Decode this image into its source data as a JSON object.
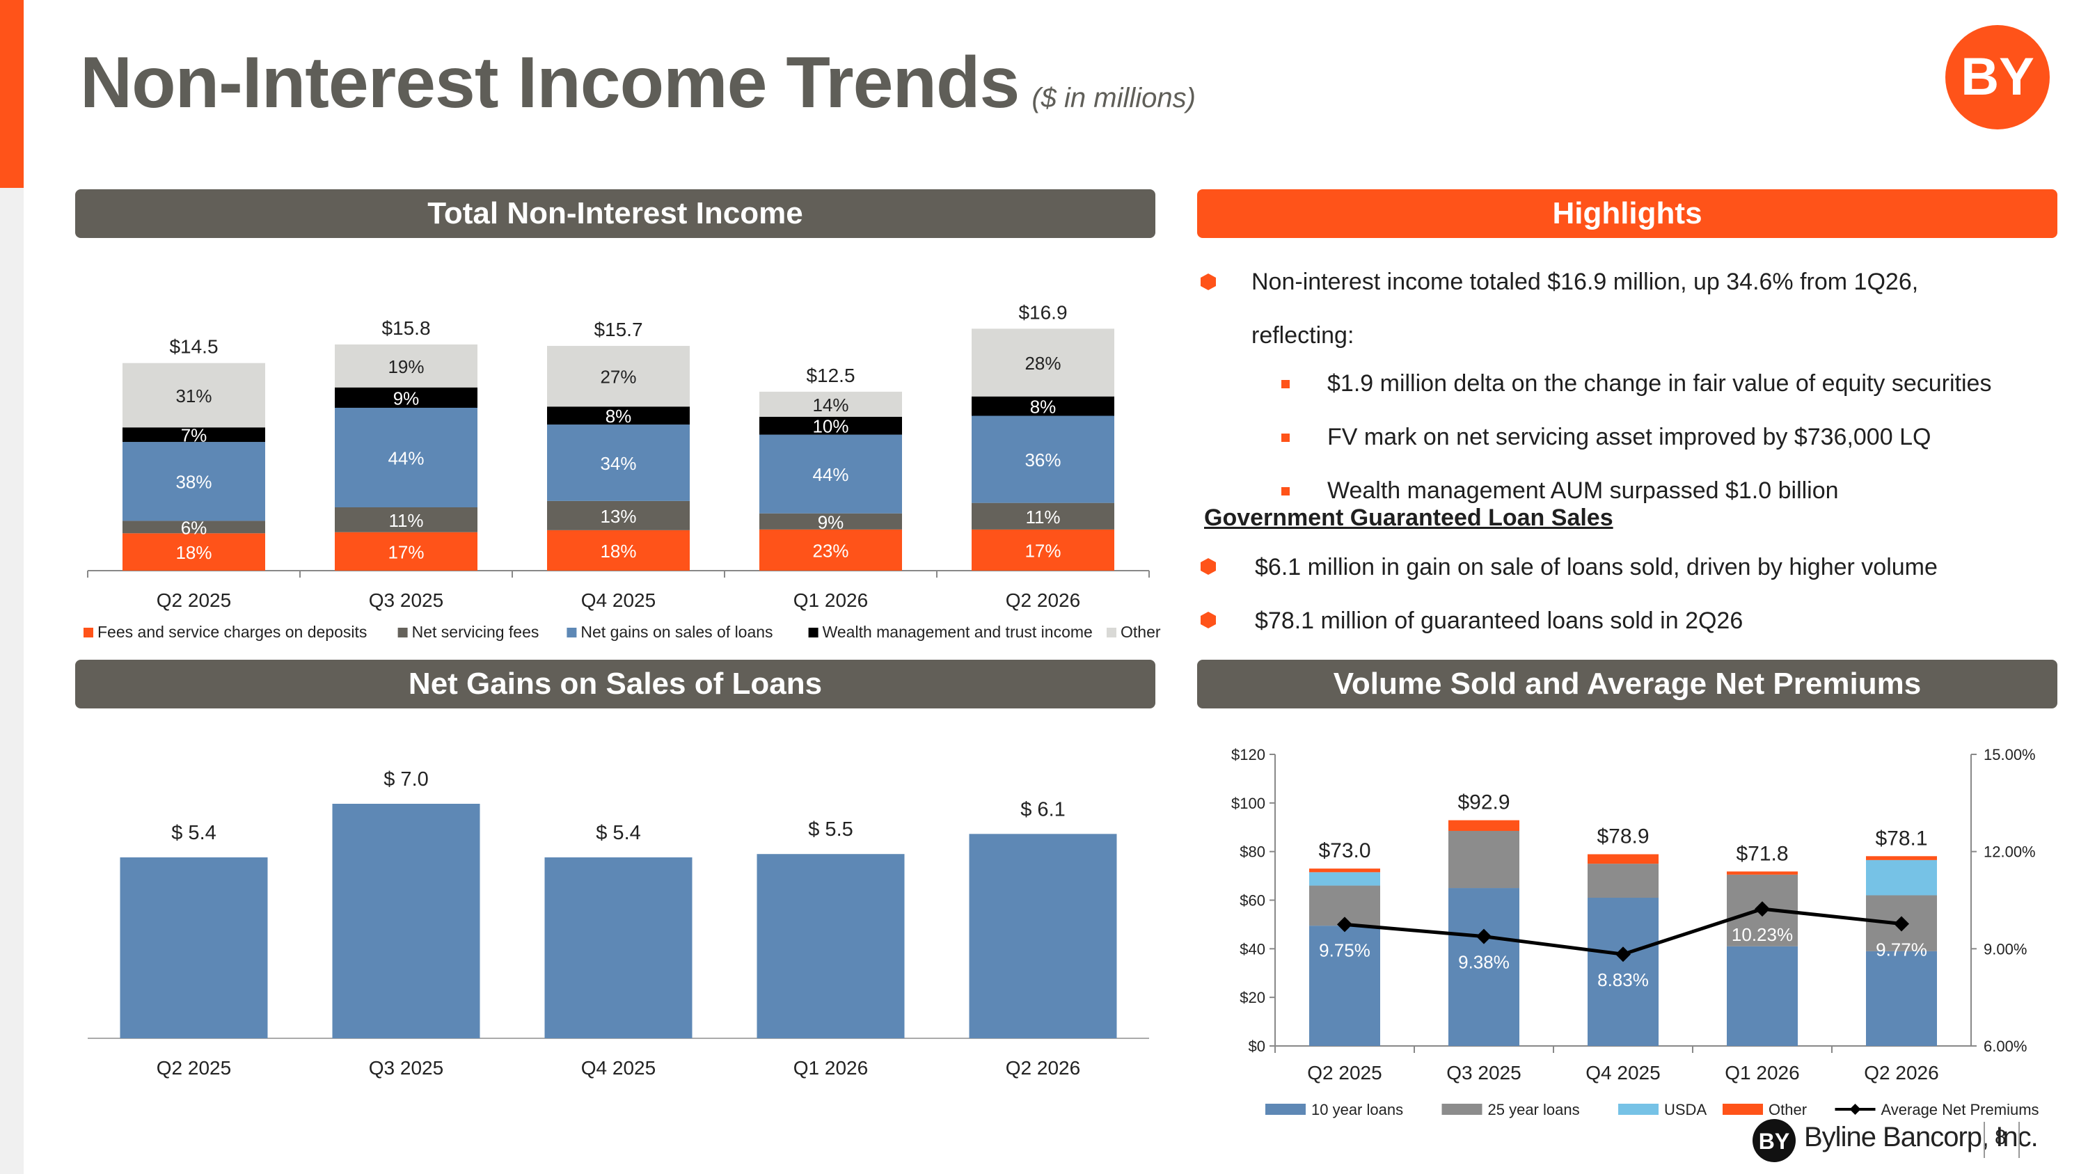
{
  "title": "Non-Interest Income Trends",
  "subtitle": "($ in millions)",
  "logo_text": "BY",
  "page_number": "8",
  "footer_company": "Byline Bancorp, Inc.",
  "colors": {
    "accent": "#FF5319",
    "header_grey": "#625F58",
    "blue": "#5E88B5",
    "grey": "#8C8C8C",
    "dark_grey": "#65625B",
    "light_grey": "#D9D9D6",
    "black": "#000000",
    "light_blue": "#76C2E6"
  },
  "panels": {
    "total": "Total Non-Interest Income",
    "highlights": "Highlights",
    "net_gains": "Net Gains on Sales of Loans",
    "volume": "Volume Sold and Average Net Premiums"
  },
  "highlights": {
    "line1": "Non-interest income totaled $16.9 million, up 34.6% from 1Q26,",
    "line1b": "reflecting:",
    "sub1": "$1.9 million delta on the change in fair value of equity securities",
    "sub2": "FV mark on net servicing asset improved by $736,000 LQ",
    "sub3": "Wealth management AUM surpassed $1.0 billion",
    "gov_heading": "Government Guaranteed Loan Sales",
    "gov1": "$6.1 million in gain on sale of loans sold, driven by higher volume",
    "gov2": "$78.1 million of guaranteed loans sold in 2Q26"
  },
  "chart_data": [
    {
      "type": "bar",
      "stacked": true,
      "title": "Total Non-Interest Income",
      "categories": [
        "Q2 2025",
        "Q3 2025",
        "Q4 2025",
        "Q1 2026",
        "Q2 2026"
      ],
      "totals": [
        14.5,
        15.8,
        15.7,
        12.5,
        16.9
      ],
      "total_labels": [
        "$14.5",
        "$15.8",
        "$15.7",
        "$12.5",
        "$16.9"
      ],
      "series": [
        {
          "name": "Fees and service charges on deposits",
          "percent": [
            18,
            17,
            18,
            23,
            17
          ],
          "labels": [
            "18%",
            "17%",
            "18%",
            "23%",
            "17%"
          ],
          "color": "#FF5319",
          "label_color": "#ffffff"
        },
        {
          "name": "Net servicing fees",
          "percent": [
            6,
            11,
            13,
            9,
            11
          ],
          "labels": [
            "6%",
            "11%",
            "13%",
            "9%",
            "11%"
          ],
          "color": "#65625B",
          "label_color": "#ffffff"
        },
        {
          "name": "Net gains on sales of loans",
          "percent": [
            38,
            44,
            34,
            44,
            36
          ],
          "labels": [
            "38%",
            "44%",
            "34%",
            "44%",
            "36%"
          ],
          "color": "#5E88B5",
          "label_color": "#ffffff"
        },
        {
          "name": "Wealth management and trust income",
          "percent": [
            7,
            9,
            8,
            10,
            8
          ],
          "labels": [
            "7%",
            "9%",
            "8%",
            "10%",
            "8%"
          ],
          "color": "#000000",
          "label_color": "#ffffff"
        },
        {
          "name": "Other",
          "percent": [
            31,
            19,
            27,
            14,
            28
          ],
          "labels": [
            "31%",
            "19%",
            "27%",
            "14%",
            "28%"
          ],
          "color": "#D9D9D6",
          "label_color": "#222222"
        }
      ],
      "legend": "bottom",
      "grid": false
    },
    {
      "type": "bar",
      "title": "Net Gains on Sales of Loans",
      "categories": [
        "Q2 2025",
        "Q3 2025",
        "Q4 2025",
        "Q1 2026",
        "Q2 2026"
      ],
      "values": [
        5.4,
        7.0,
        5.4,
        5.5,
        6.1
      ],
      "value_labels": [
        "$ 5.4",
        "$ 7.0",
        "$ 5.4",
        "$ 5.5",
        "$ 6.1"
      ],
      "color": "#5E88B5",
      "grid": false
    },
    {
      "type": "bar",
      "stacked": true,
      "title": "Volume Sold and Average Net Premiums",
      "categories": [
        "Q2 2025",
        "Q3 2025",
        "Q4 2025",
        "Q1 2026",
        "Q2 2026"
      ],
      "ylim": [
        0,
        120
      ],
      "y_ticks": [
        "$0",
        "$20",
        "$40",
        "$60",
        "$80",
        "$100",
        "$120"
      ],
      "y2lim": [
        6,
        15
      ],
      "y2_ticks": [
        "6.00%",
        "9.00%",
        "12.00%",
        "15.00%"
      ],
      "totals": [
        73.0,
        92.9,
        78.9,
        71.8,
        78.1
      ],
      "total_labels": [
        "$73.0",
        "$92.9",
        "$78.9",
        "$71.8",
        "$78.1"
      ],
      "series": [
        {
          "name": "10 year loans",
          "values": [
            49.5,
            65.0,
            61.0,
            41.0,
            39.0
          ],
          "color": "#5E88B5"
        },
        {
          "name": "25 year loans",
          "values": [
            16.5,
            23.5,
            14.0,
            29.5,
            23.0
          ],
          "color": "#8C8C8C"
        },
        {
          "name": "USDA",
          "values": [
            5.5,
            0,
            0,
            0,
            14.5
          ],
          "color": "#76C2E6"
        },
        {
          "name": "Other",
          "values": [
            1.5,
            4.4,
            3.9,
            1.3,
            1.6
          ],
          "color": "#FF5319"
        }
      ],
      "line": {
        "name": "Average Net Premiums",
        "values": [
          9.75,
          9.38,
          8.83,
          10.23,
          9.77
        ],
        "labels": [
          "9.75%",
          "9.38%",
          "8.83%",
          "10.23%",
          "9.77%"
        ],
        "axis": "right",
        "color": "#000000"
      },
      "legend": "bottom",
      "grid": false
    }
  ]
}
